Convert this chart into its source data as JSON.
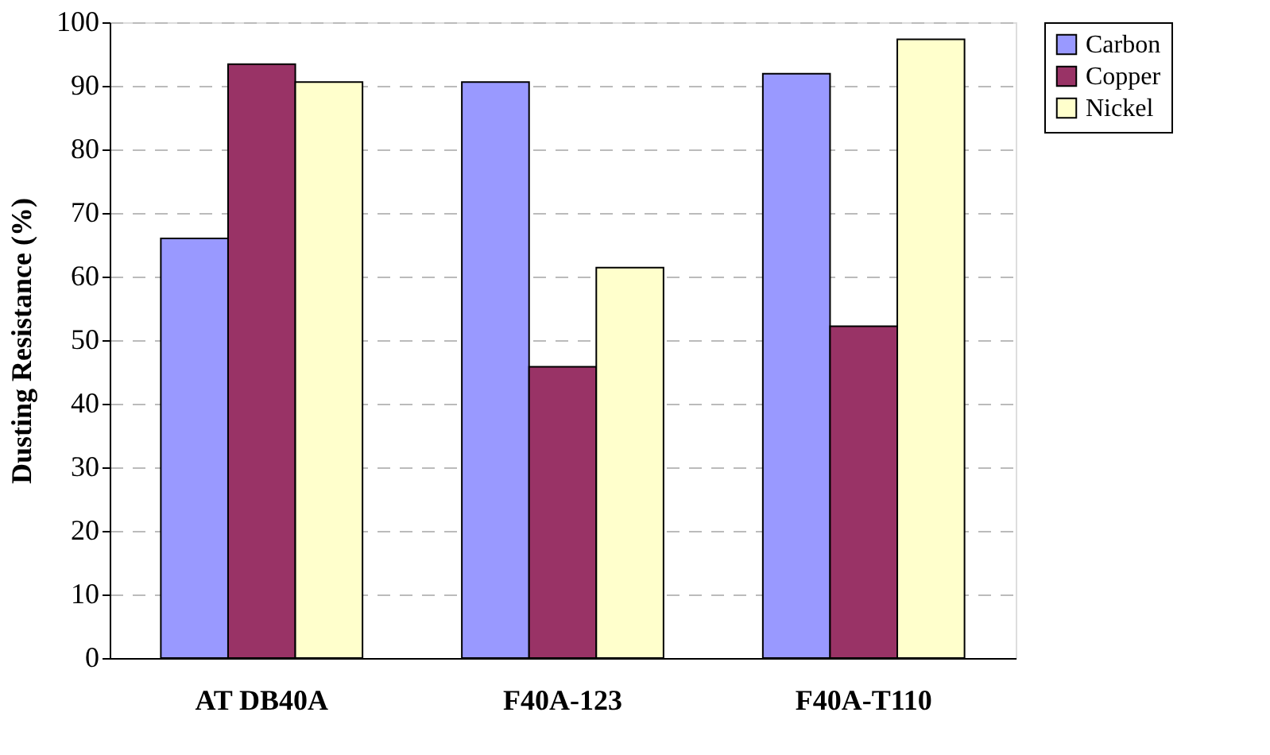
{
  "chart_data": {
    "type": "bar",
    "ylabel": "Dusting Resistance (%)",
    "categories": [
      "AT DB40A",
      "F40A-123",
      "F40A-T110"
    ],
    "series": [
      {
        "name": "Carbon",
        "color": "#9999ff",
        "values": [
          66.0,
          90.6,
          91.9
        ]
      },
      {
        "name": "Copper",
        "color": "#993366",
        "values": [
          93.4,
          45.8,
          52.2
        ]
      },
      {
        "name": "Nickel",
        "color": "#ffffcc",
        "values": [
          90.6,
          61.4,
          97.3
        ]
      }
    ],
    "ylim": [
      0,
      100
    ],
    "yticks": [
      0,
      10,
      20,
      30,
      40,
      50,
      60,
      70,
      80,
      90,
      100
    ],
    "grid": "y",
    "legend": "right"
  }
}
